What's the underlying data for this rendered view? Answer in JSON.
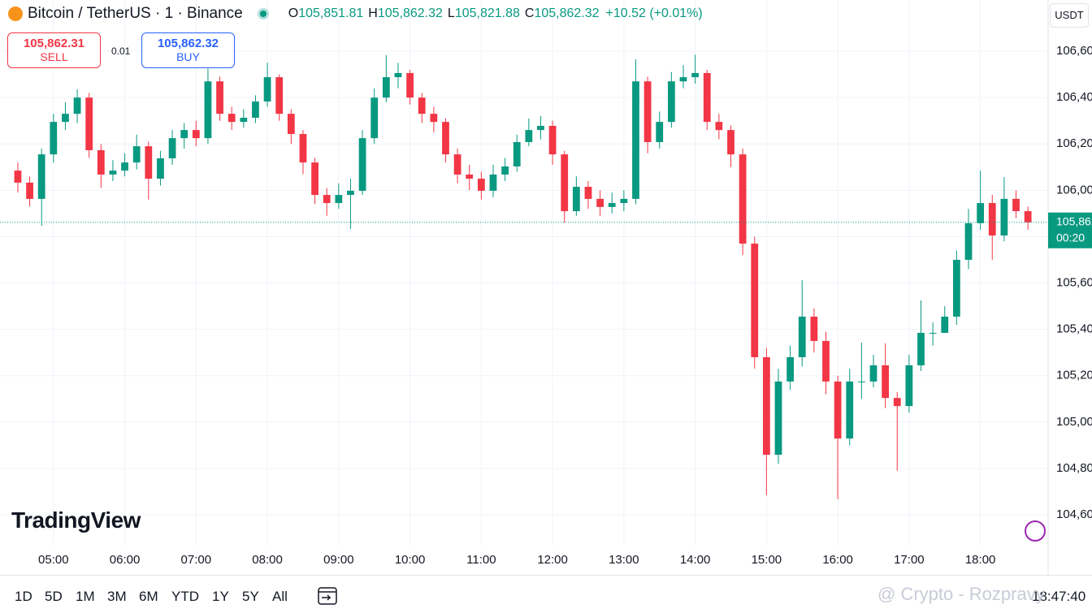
{
  "header": {
    "symbol": "Bitcoin / TetherUS · 1 · Binance",
    "ohlc": [
      {
        "key": "O",
        "value": "105,851.81"
      },
      {
        "key": "H",
        "value": "105,862.32"
      },
      {
        "key": "L",
        "value": "105,821.88"
      },
      {
        "key": "C",
        "value": "105,862.32"
      }
    ],
    "change": "+10.52 (+0.01%)"
  },
  "trade": {
    "sell_price": "105,862.31",
    "sell": "SELL",
    "spread": "0.01",
    "buy_price": "105,862.32",
    "buy": "BUY"
  },
  "logo": "TradingView",
  "currency": "USDT",
  "price_tag": {
    "price": "105,862.32",
    "countdown": "00:20"
  },
  "ranges": [
    "1D",
    "5D",
    "1M",
    "3M",
    "6M",
    "YTD",
    "1Y",
    "5Y",
    "All"
  ],
  "clock": "18:47:40",
  "watermark": "@ Crypto - Rozpravy",
  "chart_data": {
    "type": "candlestick",
    "up_color": "#089981",
    "down_color": "#f23645",
    "grid": true,
    "xlim": [
      -1.5,
      86.7
    ],
    "ylim": [
      104467,
      106821
    ],
    "xticks": [
      {
        "value": 3,
        "label": "05:00"
      },
      {
        "value": 9,
        "label": "06:00"
      },
      {
        "value": 15,
        "label": "07:00"
      },
      {
        "value": 21,
        "label": "08:00"
      },
      {
        "value": 27,
        "label": "09:00"
      },
      {
        "value": 33,
        "label": "10:00"
      },
      {
        "value": 39,
        "label": "11:00"
      },
      {
        "value": 45,
        "label": "12:00"
      },
      {
        "value": 51,
        "label": "13:00"
      },
      {
        "value": 57,
        "label": "14:00"
      },
      {
        "value": 63,
        "label": "15:00"
      },
      {
        "value": 69,
        "label": "16:00"
      },
      {
        "value": 75,
        "label": "17:00"
      },
      {
        "value": 81,
        "label": "18:00"
      }
    ],
    "yticks": [
      {
        "value": 104600,
        "label": "104,600"
      },
      {
        "value": 104800,
        "label": "104,800"
      },
      {
        "value": 105000,
        "label": "105,000"
      },
      {
        "value": 105200,
        "label": "105,200"
      },
      {
        "value": 105400,
        "label": "105,400"
      },
      {
        "value": 105600,
        "label": "105,600"
      },
      {
        "value": 105800,
        "label": "105,800"
      },
      {
        "value": 106000,
        "label": "106,000"
      },
      {
        "value": 106200,
        "label": "106,200"
      },
      {
        "value": 106400,
        "label": "106,400"
      },
      {
        "value": 106600,
        "label": "106,600"
      }
    ],
    "candles": [
      [
        106085,
        106120,
        105990,
        106033
      ],
      [
        106033,
        106060,
        105930,
        105963
      ],
      [
        105963,
        106180,
        105847,
        106155
      ],
      [
        106155,
        106330,
        106120,
        106295
      ],
      [
        106295,
        106380,
        106260,
        106330
      ],
      [
        106330,
        106435,
        106290,
        106400
      ],
      [
        106400,
        106420,
        106140,
        106173
      ],
      [
        106173,
        106200,
        106010,
        106068
      ],
      [
        106068,
        106130,
        106040,
        106085
      ],
      [
        106085,
        106160,
        106060,
        106120
      ],
      [
        106120,
        106240,
        106090,
        106190
      ],
      [
        106190,
        106210,
        105960,
        106050
      ],
      [
        106050,
        106170,
        106020,
        106138
      ],
      [
        106138,
        106260,
        106110,
        106225
      ],
      [
        106225,
        106290,
        106180,
        106260
      ],
      [
        106260,
        106300,
        106190,
        106225
      ],
      [
        106225,
        106525,
        106200,
        106470
      ],
      [
        106470,
        106490,
        106300,
        106330
      ],
      [
        106330,
        106360,
        106260,
        106295
      ],
      [
        106295,
        106350,
        106270,
        106313
      ],
      [
        106313,
        106410,
        106290,
        106383
      ],
      [
        106383,
        106550,
        106360,
        106488
      ],
      [
        106488,
        106500,
        106300,
        106330
      ],
      [
        106330,
        106350,
        106200,
        106243
      ],
      [
        106243,
        106260,
        106070,
        106120
      ],
      [
        106120,
        106140,
        105940,
        105980
      ],
      [
        105980,
        106010,
        105890,
        105945
      ],
      [
        105945,
        106030,
        105920,
        105980
      ],
      [
        105980,
        106050,
        105833,
        105998
      ],
      [
        105998,
        106260,
        105980,
        106225
      ],
      [
        106225,
        106440,
        106200,
        106400
      ],
      [
        106400,
        106583,
        106380,
        106488
      ],
      [
        106488,
        106550,
        106440,
        106506
      ],
      [
        106506,
        106520,
        106370,
        106400
      ],
      [
        106400,
        106420,
        106290,
        106330
      ],
      [
        106330,
        106360,
        106250,
        106295
      ],
      [
        106295,
        106310,
        106120,
        106155
      ],
      [
        106155,
        106180,
        106030,
        106068
      ],
      [
        106068,
        106110,
        106000,
        106050
      ],
      [
        106050,
        106080,
        105960,
        105998
      ],
      [
        105998,
        106110,
        105970,
        106068
      ],
      [
        106068,
        106140,
        106040,
        106103
      ],
      [
        106103,
        106240,
        106080,
        106208
      ],
      [
        106208,
        106310,
        106190,
        106260
      ],
      [
        106260,
        106320,
        106220,
        106278
      ],
      [
        106278,
        106300,
        106110,
        106155
      ],
      [
        106155,
        106170,
        105860,
        105910
      ],
      [
        105910,
        106060,
        105890,
        106015
      ],
      [
        106015,
        106040,
        105920,
        105963
      ],
      [
        105963,
        106000,
        105890,
        105928
      ],
      [
        105928,
        105990,
        105900,
        105945
      ],
      [
        105945,
        106000,
        105910,
        105963
      ],
      [
        105963,
        106565,
        105940,
        106470
      ],
      [
        106470,
        106490,
        106160,
        106208
      ],
      [
        106208,
        106340,
        106180,
        106295
      ],
      [
        106295,
        106510,
        106270,
        106470
      ],
      [
        106470,
        106540,
        106440,
        106488
      ],
      [
        106488,
        106585,
        106460,
        106506
      ],
      [
        106506,
        106520,
        106260,
        106295
      ],
      [
        106295,
        106330,
        106220,
        106260
      ],
      [
        106260,
        106280,
        106100,
        106155
      ],
      [
        106155,
        106180,
        105720,
        105770
      ],
      [
        105770,
        105800,
        105230,
        105280
      ],
      [
        105280,
        105320,
        104684,
        104859
      ],
      [
        104859,
        105230,
        104820,
        105175
      ],
      [
        105175,
        105330,
        105140,
        105280
      ],
      [
        105280,
        105612,
        105240,
        105455
      ],
      [
        105455,
        105490,
        105300,
        105350
      ],
      [
        105350,
        105390,
        105120,
        105175
      ],
      [
        105175,
        105200,
        104667,
        104929
      ],
      [
        104929,
        105230,
        104900,
        105175
      ],
      [
        105175,
        105343,
        105100,
        105175
      ],
      [
        105175,
        105290,
        105150,
        105245
      ],
      [
        105245,
        105340,
        105060,
        105104
      ],
      [
        105104,
        105130,
        104790,
        105069
      ],
      [
        105069,
        105290,
        105040,
        105245
      ],
      [
        105245,
        105525,
        105220,
        105385
      ],
      [
        105385,
        105430,
        105330,
        105385
      ],
      [
        105385,
        105500,
        105400,
        105455
      ],
      [
        105455,
        105740,
        105420,
        105700
      ],
      [
        105700,
        105920,
        105660,
        105858
      ],
      [
        105858,
        106085,
        105830,
        105945
      ],
      [
        105945,
        105980,
        105700,
        105805
      ],
      [
        105805,
        106057,
        105780,
        105963
      ],
      [
        105963,
        106000,
        105880,
        105910
      ],
      [
        105910,
        105930,
        105830,
        105862
      ]
    ]
  }
}
